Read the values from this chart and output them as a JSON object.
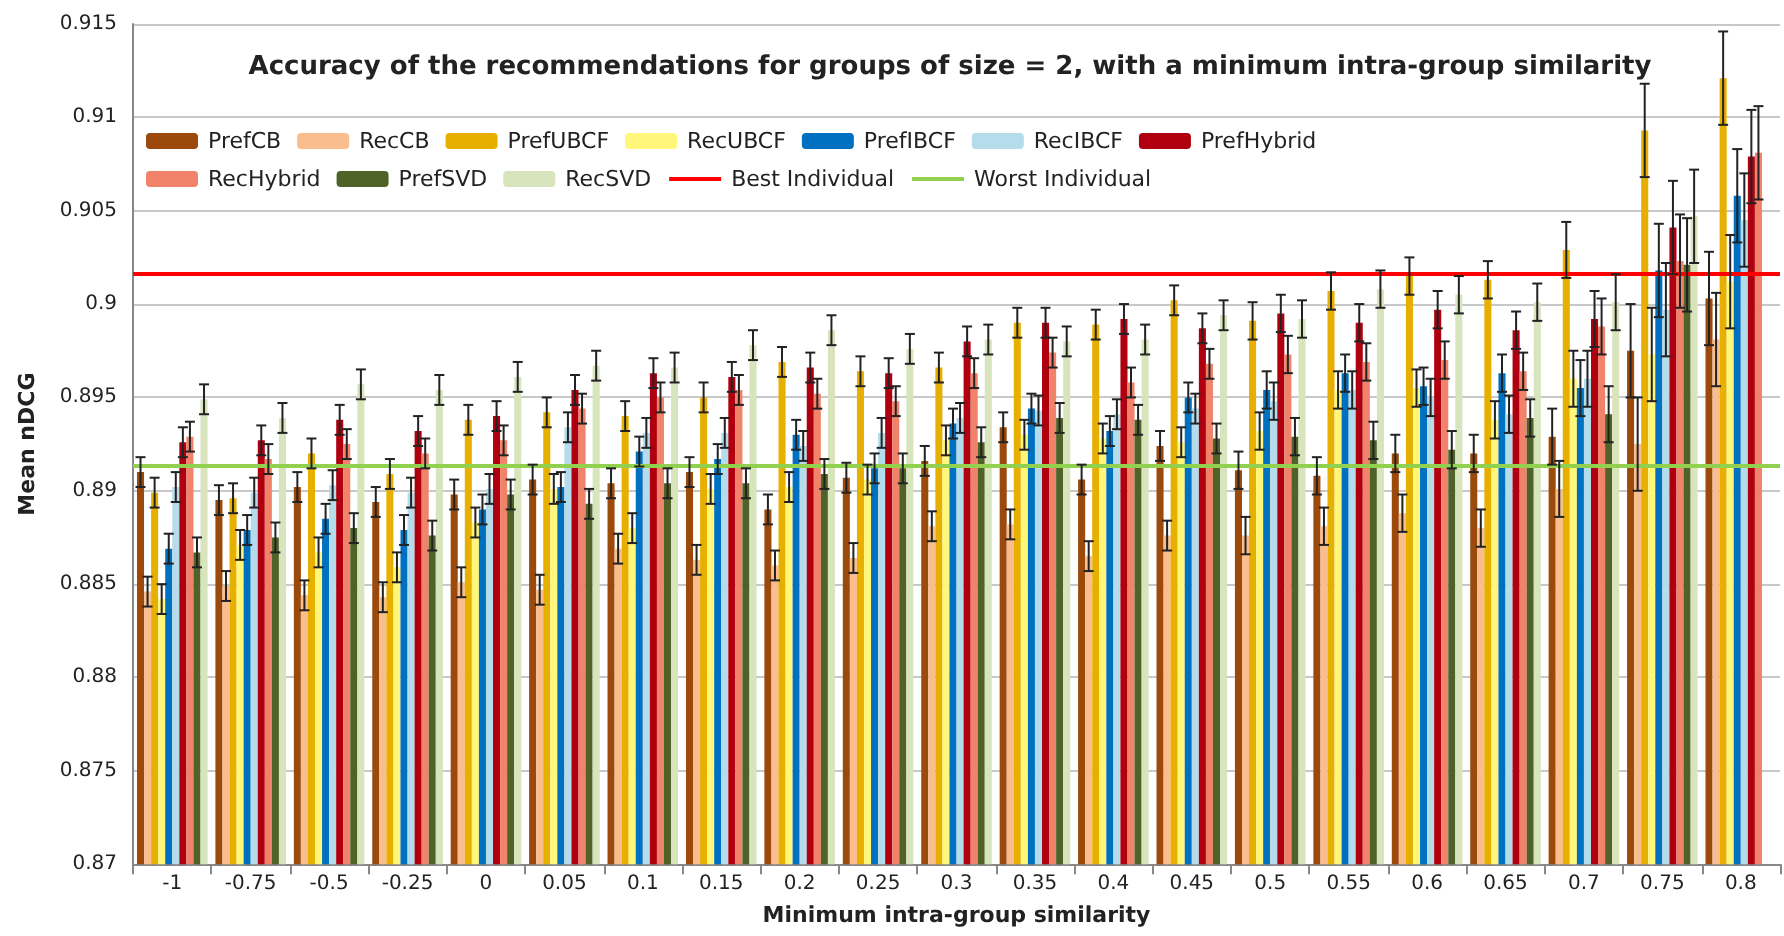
{
  "chart_data": {
    "type": "bar",
    "title": "Accuracy of the recommendations for groups of size = 2, with a minimum intra-group similarity",
    "xlabel": "Minimum intra-group similarity",
    "ylabel": "Mean nDCG",
    "categories": [
      "-1",
      "-0.75",
      "-0.5",
      "-0.25",
      "0",
      "0.05",
      "0.1",
      "0.15",
      "0.2",
      "0.25",
      "0.3",
      "0.35",
      "0.4",
      "0.45",
      "0.5",
      "0.55",
      "0.6",
      "0.65",
      "0.7",
      "0.75",
      "0.8"
    ],
    "series": [
      {
        "name": "PrefCB",
        "color": "#9c4a0c",
        "values": [
          0.891,
          0.8895,
          0.8902,
          0.8894,
          0.8898,
          0.8906,
          0.8904,
          0.891,
          0.889,
          0.8907,
          0.8916,
          0.8934,
          0.8906,
          0.8924,
          0.8911,
          0.8908,
          0.892,
          0.892,
          0.8929,
          0.8975,
          0.9003
        ],
        "errors": [
          0.0008,
          0.0008,
          0.0008,
          0.0008,
          0.0008,
          0.0008,
          0.0008,
          0.0008,
          0.0008,
          0.0008,
          0.0008,
          0.0008,
          0.0008,
          0.0008,
          0.001,
          0.001,
          0.001,
          0.001,
          0.0015,
          0.0025,
          0.0025
        ]
      },
      {
        "name": "RecCB",
        "color": "#f9bd8e",
        "values": [
          0.8846,
          0.8849,
          0.8844,
          0.8843,
          0.8851,
          0.8847,
          0.8869,
          0.8863,
          0.886,
          0.8864,
          0.8881,
          0.8882,
          0.8865,
          0.8876,
          0.8876,
          0.8881,
          0.8888,
          0.888,
          0.8901,
          0.8925,
          0.8981
        ],
        "errors": [
          0.0008,
          0.0008,
          0.0008,
          0.0008,
          0.0008,
          0.0008,
          0.0008,
          0.0008,
          0.0008,
          0.0008,
          0.0008,
          0.0008,
          0.0008,
          0.0008,
          0.001,
          0.001,
          0.001,
          0.001,
          0.0015,
          0.0025,
          0.0025
        ]
      },
      {
        "name": "PrefUBCF",
        "color": "#e7b000",
        "values": [
          0.8899,
          0.8896,
          0.892,
          0.8909,
          0.8938,
          0.8942,
          0.894,
          0.895,
          0.8969,
          0.8964,
          0.8966,
          0.899,
          0.8989,
          0.9002,
          0.8991,
          0.9007,
          0.9015,
          0.9013,
          0.9029,
          0.9093,
          0.9121
        ],
        "errors": [
          0.0008,
          0.0008,
          0.0008,
          0.0008,
          0.0008,
          0.0008,
          0.0008,
          0.0008,
          0.0008,
          0.0008,
          0.0008,
          0.0008,
          0.0008,
          0.0008,
          0.001,
          0.001,
          0.001,
          0.001,
          0.0015,
          0.0025,
          0.0025
        ]
      },
      {
        "name": "RecUBCF",
        "color": "#fff67a",
        "values": [
          0.8842,
          0.8871,
          0.8867,
          0.8859,
          0.8883,
          0.8901,
          0.888,
          0.8901,
          0.8902,
          0.8906,
          0.8927,
          0.893,
          0.8928,
          0.8926,
          0.8932,
          0.8954,
          0.8955,
          0.8938,
          0.896,
          0.8973,
          0.9012
        ],
        "errors": [
          0.0008,
          0.0008,
          0.0008,
          0.0008,
          0.0008,
          0.0008,
          0.0008,
          0.0008,
          0.0008,
          0.0008,
          0.0008,
          0.0008,
          0.0008,
          0.0008,
          0.001,
          0.001,
          0.001,
          0.001,
          0.0015,
          0.0025,
          0.0025
        ]
      },
      {
        "name": "PrefIBCF",
        "color": "#0070c0",
        "values": [
          0.8869,
          0.8879,
          0.8885,
          0.8879,
          0.889,
          0.8902,
          0.8921,
          0.8917,
          0.893,
          0.8912,
          0.8936,
          0.8944,
          0.8932,
          0.895,
          0.8954,
          0.8963,
          0.8956,
          0.8963,
          0.8955,
          0.9018,
          0.9058
        ],
        "errors": [
          0.0008,
          0.0008,
          0.0008,
          0.0008,
          0.0008,
          0.0008,
          0.0008,
          0.0008,
          0.0008,
          0.0008,
          0.0008,
          0.0008,
          0.0008,
          0.0008,
          0.001,
          0.001,
          0.001,
          0.001,
          0.0015,
          0.0025,
          0.0025
        ]
      },
      {
        "name": "RecIBCF",
        "color": "#b4dcea",
        "values": [
          0.8902,
          0.8899,
          0.8903,
          0.8899,
          0.8901,
          0.8934,
          0.8931,
          0.8931,
          0.8924,
          0.8931,
          0.8939,
          0.8943,
          0.8941,
          0.8944,
          0.8948,
          0.8954,
          0.895,
          0.8941,
          0.896,
          0.8997,
          0.9045
        ],
        "errors": [
          0.0008,
          0.0008,
          0.0008,
          0.0008,
          0.0008,
          0.0008,
          0.0008,
          0.0008,
          0.0008,
          0.0008,
          0.0008,
          0.0008,
          0.0008,
          0.0008,
          0.001,
          0.001,
          0.001,
          0.001,
          0.0015,
          0.0025,
          0.0025
        ]
      },
      {
        "name": "PrefHybrid",
        "color": "#b00010",
        "values": [
          0.8926,
          0.8927,
          0.8938,
          0.8932,
          0.894,
          0.8954,
          0.8963,
          0.8961,
          0.8966,
          0.8963,
          0.898,
          0.899,
          0.8992,
          0.8987,
          0.8995,
          0.899,
          0.8997,
          0.8986,
          0.8992,
          0.9041,
          0.9079
        ],
        "errors": [
          0.0008,
          0.0008,
          0.0008,
          0.0008,
          0.0008,
          0.0008,
          0.0008,
          0.0008,
          0.0008,
          0.0008,
          0.0008,
          0.0008,
          0.0008,
          0.0008,
          0.001,
          0.001,
          0.001,
          0.001,
          0.0015,
          0.0025,
          0.0025
        ]
      },
      {
        "name": "RecHybrid",
        "color": "#f0836a",
        "values": [
          0.8929,
          0.8917,
          0.8925,
          0.892,
          0.8927,
          0.8944,
          0.895,
          0.8954,
          0.8952,
          0.8948,
          0.8963,
          0.8974,
          0.8958,
          0.8968,
          0.8973,
          0.8969,
          0.897,
          0.8964,
          0.8988,
          0.9023,
          0.9081
        ],
        "errors": [
          0.0008,
          0.0008,
          0.0008,
          0.0008,
          0.0008,
          0.0008,
          0.0008,
          0.0008,
          0.0008,
          0.0008,
          0.0008,
          0.0008,
          0.0008,
          0.0008,
          0.001,
          0.001,
          0.001,
          0.001,
          0.0015,
          0.0025,
          0.0025
        ]
      },
      {
        "name": "PrefSVD",
        "color": "#4f6228",
        "values": [
          0.8867,
          0.8875,
          0.888,
          0.8876,
          0.8898,
          0.8893,
          0.8904,
          0.8904,
          0.8909,
          0.8912,
          0.8926,
          0.8939,
          0.8938,
          0.8928,
          0.8929,
          0.8927,
          0.8922,
          0.8939,
          0.8941,
          0.9021,
          null
        ],
        "errors": [
          0.0008,
          0.0008,
          0.0008,
          0.0008,
          0.0008,
          0.0008,
          0.0008,
          0.0008,
          0.0008,
          0.0008,
          0.0008,
          0.0008,
          0.0008,
          0.0008,
          0.001,
          0.001,
          0.001,
          0.001,
          0.0015,
          0.0025,
          null
        ]
      },
      {
        "name": "RecSVD",
        "color": "#d8e4bc",
        "values": [
          0.8949,
          0.8939,
          0.8957,
          0.8954,
          0.8961,
          0.8967,
          0.8966,
          0.8978,
          0.8986,
          0.8976,
          0.8981,
          0.898,
          0.8981,
          0.8994,
          0.8992,
          0.9008,
          0.9005,
          0.9001,
          0.9001,
          0.9047,
          null
        ],
        "errors": [
          0.0008,
          0.0008,
          0.0008,
          0.0008,
          0.0008,
          0.0008,
          0.0008,
          0.0008,
          0.0008,
          0.0008,
          0.0008,
          0.0008,
          0.0008,
          0.0008,
          0.001,
          0.001,
          0.001,
          0.001,
          0.0015,
          0.0025,
          null
        ]
      }
    ],
    "ref_lines": [
      {
        "axis": "y",
        "value": 0.9016,
        "label": "Best Individual",
        "color": "#ff0000"
      },
      {
        "axis": "y",
        "value": 0.8914,
        "label": "Worst Individual",
        "color": "#92d050"
      }
    ],
    "ylim": [
      0.87,
      0.915
    ],
    "yticks": [
      0.87,
      0.875,
      0.88,
      0.885,
      0.89,
      0.895,
      0.9,
      0.905,
      0.91,
      0.915
    ],
    "grid": "y",
    "legend": "top"
  }
}
